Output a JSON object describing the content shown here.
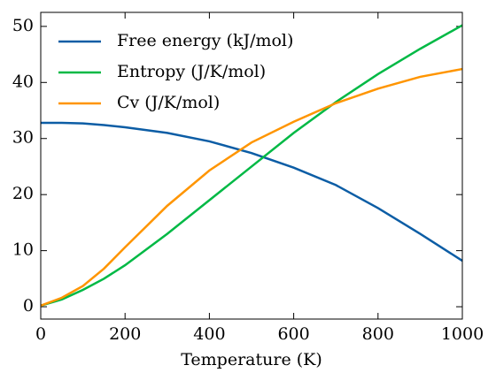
{
  "chart_data": {
    "type": "line",
    "x_label": "Temperature (K)",
    "x": [
      0,
      50,
      100,
      150,
      200,
      300,
      400,
      500,
      600,
      700,
      800,
      900,
      1000
    ],
    "series": [
      {
        "name": "Free energy (kJ/mol)",
        "color": "#0C5DA5",
        "values": [
          32.8,
          32.8,
          32.7,
          32.4,
          32.0,
          31.0,
          29.5,
          27.4,
          24.8,
          21.7,
          17.6,
          13.0,
          8.2
        ]
      },
      {
        "name": "Entropy (J/K/mol)",
        "color": "#00B945",
        "values": [
          0.2,
          1.3,
          3.0,
          5.0,
          7.4,
          13.0,
          19.0,
          25.0,
          31.0,
          36.5,
          41.5,
          46.0,
          50.2
        ]
      },
      {
        "name": "Cv (J/K/mol)",
        "color": "#FF9500",
        "values": [
          0.2,
          1.6,
          3.7,
          6.8,
          10.6,
          18.0,
          24.3,
          29.3,
          33.0,
          36.3,
          38.9,
          41.0,
          42.4
        ]
      }
    ],
    "xlim": [
      0,
      1000
    ],
    "xticks": [
      0,
      200,
      400,
      600,
      800,
      1000
    ],
    "ylim": [
      -2.2,
      52.5
    ],
    "yticks": [
      0,
      10,
      20,
      30,
      40,
      50
    ],
    "legend": "upper-left",
    "grid": false
  }
}
